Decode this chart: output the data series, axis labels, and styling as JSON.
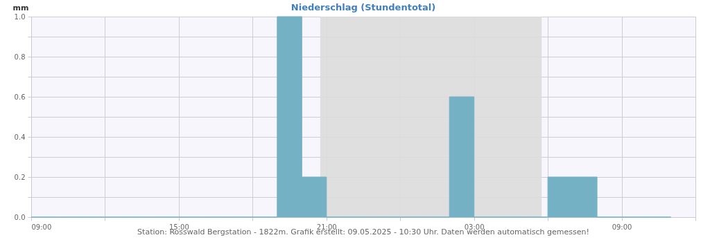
{
  "chart_data": {
    "type": "bar",
    "title": "Niederschlag (Stundentotal)",
    "ylabel": "mm",
    "x": [
      "2025-05-08T09:30",
      "2025-05-08T10:30",
      "2025-05-08T11:30",
      "2025-05-08T12:30",
      "2025-05-08T13:30",
      "2025-05-08T14:30",
      "2025-05-08T15:30",
      "2025-05-08T16:30",
      "2025-05-08T17:30",
      "2025-05-08T18:30",
      "2025-05-08T19:30",
      "2025-05-08T20:30",
      "2025-05-08T21:30",
      "2025-05-08T22:30",
      "2025-05-08T23:30",
      "2025-05-09T00:30",
      "2025-05-09T01:30",
      "2025-05-09T02:30",
      "2025-05-09T03:30",
      "2025-05-09T04:30",
      "2025-05-09T05:30",
      "2025-05-09T06:30",
      "2025-05-09T07:30",
      "2025-05-09T08:30",
      "2025-05-09T09:30",
      "2025-05-09T10:30"
    ],
    "series": [
      {
        "color": "#74b1c5",
        "values": [
          0,
          0,
          0,
          0,
          0,
          0,
          0,
          0,
          0,
          0,
          1.0,
          0.2,
          0,
          0,
          0,
          0,
          0,
          0.6,
          0,
          0,
          0,
          0.2,
          0.2,
          0,
          0,
          0
        ]
      }
    ],
    "xlim": [
      "2025-05-08T09:00",
      "2025-05-09T12:00"
    ],
    "xticks": [
      {
        "value": "2025-05-08T09:00",
        "label": "09:00"
      },
      {
        "value": "2025-05-08T12:00",
        "label": null
      },
      {
        "value": "2025-05-08T15:00",
        "label": "15:00"
      },
      {
        "value": "2025-05-08T18:00",
        "label": null
      },
      {
        "value": "2025-05-08T21:00",
        "label": "21:00"
      },
      {
        "value": "2025-05-09T00:00",
        "label": null
      },
      {
        "value": "2025-05-09T03:00",
        "label": "03:00"
      },
      {
        "value": "2025-05-09T06:00",
        "label": null
      },
      {
        "value": "2025-05-09T09:00",
        "label": "09:00"
      },
      {
        "value": "2025-05-09T12:00",
        "label": null
      }
    ],
    "ylim": [
      0,
      1.0
    ],
    "yticks": [
      {
        "value": 0,
        "label": "0.0"
      },
      {
        "value": 0.1,
        "label": null
      },
      {
        "value": 0.2,
        "label": "0.2"
      },
      {
        "value": 0.3,
        "label": null
      },
      {
        "value": 0.4,
        "label": "0.4"
      },
      {
        "value": 0.5,
        "label": null
      },
      {
        "value": 0.6,
        "label": "0.6"
      },
      {
        "value": 0.7,
        "label": null
      },
      {
        "value": 0.8,
        "label": "0.8"
      },
      {
        "value": 0.9,
        "label": null
      },
      {
        "value": 1.0,
        "label": "1.0"
      }
    ],
    "bands": [
      {
        "axis": "x",
        "from": "2025-05-08T20:45",
        "to": "2025-05-09T05:45",
        "color": "#dddddd"
      }
    ],
    "grid": true,
    "annotations": [
      "Station: Rosswald Bergstation - 1822m. Grafik erstellt: 09.05.2025 - 10:30 Uhr. Daten werden automatisch gemessen!"
    ]
  }
}
